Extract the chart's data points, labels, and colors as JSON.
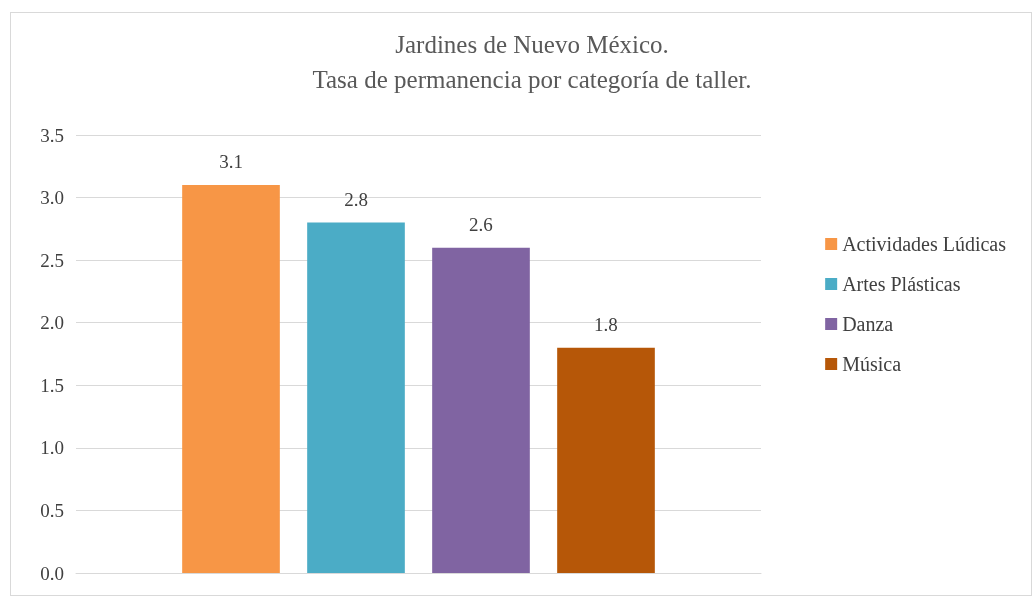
{
  "chart_data": {
    "type": "bar",
    "title": "Jardines de Nuevo México.",
    "subtitle": "Tasa de permanencia por categoría de taller.",
    "categories": [
      null
    ],
    "series": [
      {
        "name": "Actividades Lúdicas",
        "color": "#f79646",
        "values": [
          3.1
        ]
      },
      {
        "name": "Artes Plásticas",
        "color": "#4bacc6",
        "values": [
          2.8
        ]
      },
      {
        "name": "Danza",
        "color": "#8064a2",
        "values": [
          2.6
        ]
      },
      {
        "name": "Música",
        "color": "#b65708",
        "values": [
          1.8
        ]
      }
    ],
    "ylim": [
      0,
      3.5
    ],
    "yticks": [
      {
        "value": 0,
        "label": "0.0"
      },
      {
        "value": 0.5,
        "label": "0.5"
      },
      {
        "value": 1,
        "label": "1.0"
      },
      {
        "value": 1.5,
        "label": "1.5"
      },
      {
        "value": 2,
        "label": "2.0"
      },
      {
        "value": 2.5,
        "label": "2.5"
      },
      {
        "value": 3,
        "label": "3.0"
      },
      3.5
    ],
    "grid": "y",
    "legend": "right",
    "data_labels": true
  }
}
